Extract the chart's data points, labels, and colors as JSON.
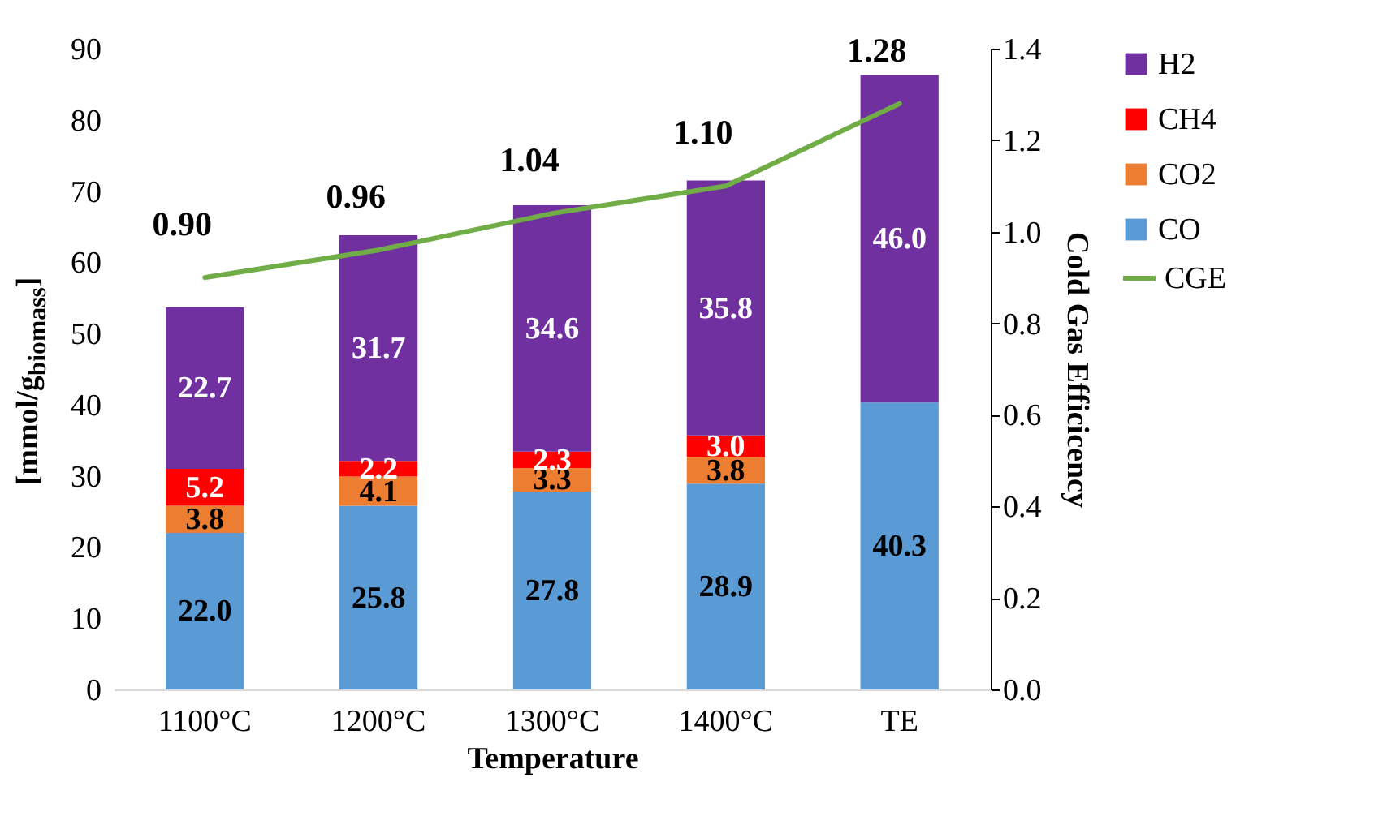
{
  "chart_data": {
    "type": "bar",
    "stacked": true,
    "xlabel": "Temperature",
    "ylabel": "[mmol/g$_{biomass}$]",
    "y2label": "Cold Gas Efficicency",
    "categories": [
      "1100°C",
      "1200°C",
      "1300°C",
      "1400°C",
      "TE"
    ],
    "series": [
      {
        "name": "CO",
        "color": "#5b9bd5",
        "values": [
          22.0,
          25.8,
          27.8,
          28.9,
          40.3
        ],
        "value_labels": [
          "22.0",
          "25.8",
          "27.8",
          "28.9",
          "40.3"
        ]
      },
      {
        "name": "CO2",
        "color": "#ed7d31",
        "values": [
          3.8,
          4.1,
          3.3,
          3.8,
          null
        ],
        "value_labels": [
          "3.8",
          "4.1",
          "3.3",
          "3.8",
          null
        ]
      },
      {
        "name": "CH4",
        "color": "#ff0000",
        "values": [
          5.2,
          2.2,
          2.3,
          3.0,
          null
        ],
        "value_labels": [
          "5.2",
          "2.2",
          "2.3",
          "3.0",
          null
        ]
      },
      {
        "name": "H2",
        "color": "#7030a0",
        "values": [
          22.7,
          31.7,
          34.6,
          35.8,
          46.0
        ],
        "value_labels": [
          "22.7",
          "31.7",
          "34.6",
          "35.8",
          "46.0"
        ]
      },
      {
        "name": "CGE",
        "type": "line",
        "axis": "y2",
        "color": "#70ad47",
        "values": [
          0.9,
          0.96,
          1.04,
          1.1,
          1.28
        ],
        "value_labels": [
          "0.90",
          "0.96",
          "1.04",
          "1.10",
          "1.28"
        ]
      }
    ],
    "ylim": [
      0,
      90
    ],
    "yticks": [
      0,
      10,
      20,
      30,
      40,
      50,
      60,
      70,
      80,
      90
    ],
    "y2lim": [
      0,
      1.4
    ],
    "y2ticks": [
      {
        "value": 0,
        "label": "0.0"
      },
      {
        "value": 0.2,
        "label": "0.2"
      },
      {
        "value": 0.4,
        "label": "0.4"
      },
      {
        "value": 0.6,
        "label": "0.6"
      },
      {
        "value": 0.8,
        "label": "0.8"
      },
      {
        "value": 1.0,
        "label": "1.0"
      },
      {
        "value": 1.2,
        "label": "1.2"
      },
      {
        "value": 1.4,
        "label": "1.4"
      }
    ],
    "legend": "right",
    "grid": false
  }
}
